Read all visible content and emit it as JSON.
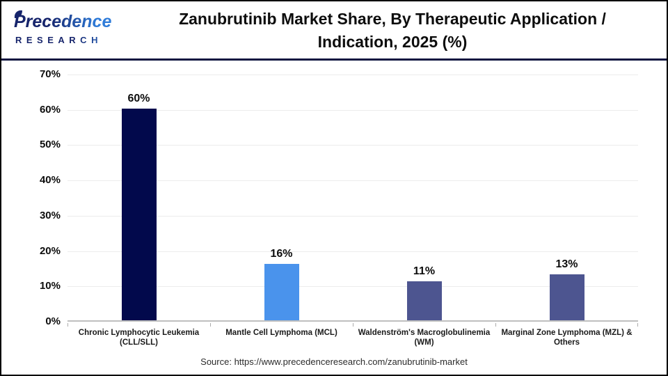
{
  "header": {
    "logo": {
      "line1": "Precedence",
      "line2": "RESEARCH"
    },
    "title": {
      "line1": "Zanubrutinib Market Share, By Therapeutic Application /",
      "line2": "Indication, 2025 (%)"
    }
  },
  "chart_data": {
    "type": "bar",
    "title": "Zanubrutinib Market Share, By Therapeutic Application / Indication, 2025 (%)",
    "categories": [
      "Chronic Lymphocytic Leukemia (CLL/SLL)",
      "Mantle Cell Lymphoma (MCL)",
      "Waldenström's Macroglobulinemia (WM)",
      "Marginal Zone Lymphoma (MZL) & Others"
    ],
    "values": [
      60,
      16,
      11,
      13
    ],
    "unit": "%",
    "bar_colors": [
      "#02094c",
      "#4a93ec",
      "#4d5590",
      "#4d5590"
    ],
    "ylim": [
      0,
      70
    ],
    "ytick_step": 10,
    "ytick_labels": [
      "0%",
      "10%",
      "20%",
      "30%",
      "40%",
      "50%",
      "60%",
      "70%"
    ],
    "grid": true,
    "legend": false,
    "colors": {
      "navy_bar": "#02094c",
      "blue_bar": "#4a93ec",
      "indigo_bar": "#4d5590",
      "divider_navy": "#0e1440",
      "gridline": "#ececec",
      "axis_line": "#bfbfbf",
      "logo_navy": "#16246b",
      "logo_blue": "#2f7cd9"
    }
  },
  "footer": {
    "source": "Source: https://www.precedenceresearch.com/zanubrutinib-market"
  }
}
